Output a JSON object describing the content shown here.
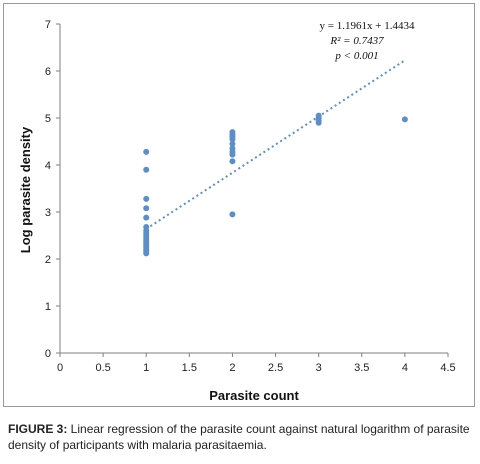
{
  "chart_data": {
    "type": "scatter",
    "xlabel": "Parasite count",
    "ylabel": "Log parasite density",
    "xlim": [
      0,
      4.5
    ],
    "ylim": [
      0,
      7
    ],
    "x_ticks": [
      "0",
      "0.5",
      "1",
      "1.5",
      "2",
      "2.5",
      "3",
      "3.5",
      "4",
      "4.5"
    ],
    "y_ticks": [
      "0",
      "1",
      "2",
      "3",
      "4",
      "5",
      "6",
      "7"
    ],
    "grid": false,
    "point_color": "#5b8fc9",
    "trendline": {
      "style": "dotted",
      "slope": 1.1961,
      "intercept": 1.4434,
      "x_range": [
        1,
        4
      ],
      "equation": "y = 1.1961x + 1.4434",
      "r_squared": "R² = 0.7437",
      "p_value": "p < 0.001"
    },
    "points": [
      [
        1,
        4.28
      ],
      [
        1,
        3.9
      ],
      [
        1,
        3.28
      ],
      [
        1,
        3.08
      ],
      [
        1,
        2.88
      ],
      [
        1,
        2.68
      ],
      [
        1,
        2.6
      ],
      [
        1,
        2.55
      ],
      [
        1,
        2.5
      ],
      [
        1,
        2.45
      ],
      [
        1,
        2.4
      ],
      [
        1,
        2.36
      ],
      [
        1,
        2.32
      ],
      [
        1,
        2.28
      ],
      [
        1,
        2.24
      ],
      [
        1,
        2.2
      ],
      [
        1,
        2.16
      ],
      [
        1,
        2.12
      ],
      [
        2,
        4.7
      ],
      [
        2,
        4.65
      ],
      [
        2,
        4.6
      ],
      [
        2,
        4.55
      ],
      [
        2,
        4.45
      ],
      [
        2,
        4.35
      ],
      [
        2,
        4.28
      ],
      [
        2,
        4.22
      ],
      [
        2,
        4.08
      ],
      [
        2,
        2.95
      ],
      [
        3,
        5.05
      ],
      [
        3,
        5.0
      ],
      [
        3,
        4.95
      ],
      [
        3,
        4.9
      ],
      [
        4,
        4.97
      ]
    ]
  },
  "caption": {
    "label": "FIGURE 3:",
    "text": " Linear regression of the parasite count against natural logarithm of parasite density of participants with malaria parasitaemia."
  }
}
